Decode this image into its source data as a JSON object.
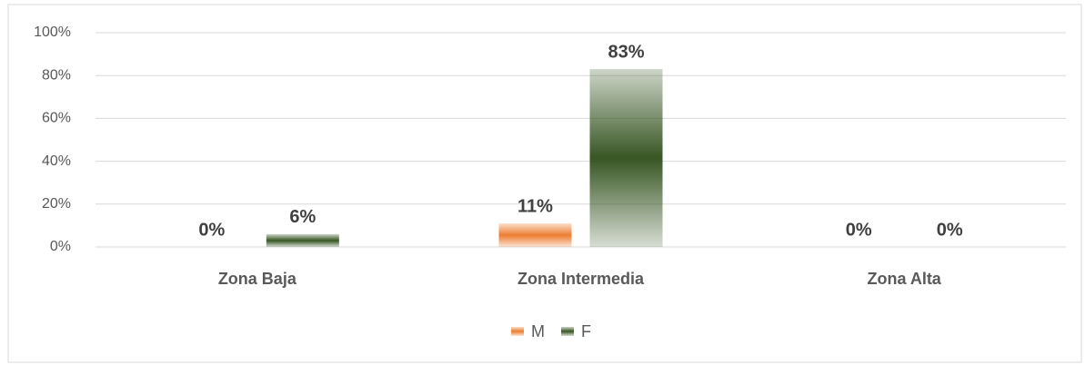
{
  "chart_data": {
    "type": "bar",
    "categories": [
      "Zona Baja",
      "Zona Intermedia",
      "Zona Alta"
    ],
    "series": [
      {
        "name": "M",
        "color": "#ed7d31",
        "values": [
          0,
          11,
          0
        ],
        "value_labels": [
          "0%",
          "11%",
          "0%"
        ]
      },
      {
        "name": "F",
        "color": "#375623",
        "values": [
          6,
          83,
          0
        ],
        "value_labels": [
          "6%",
          "83%",
          "0%"
        ]
      }
    ],
    "ylim": [
      0,
      100
    ],
    "yticks": [
      {
        "value": 0,
        "label": "0%"
      },
      {
        "value": 20,
        "label": "20%"
      },
      {
        "value": 40,
        "label": "40%"
      },
      {
        "value": 60,
        "label": "60%"
      },
      {
        "value": 80,
        "label": "80%"
      },
      {
        "value": 100,
        "label": "100%"
      }
    ],
    "grid": true,
    "legend": "bottom"
  }
}
